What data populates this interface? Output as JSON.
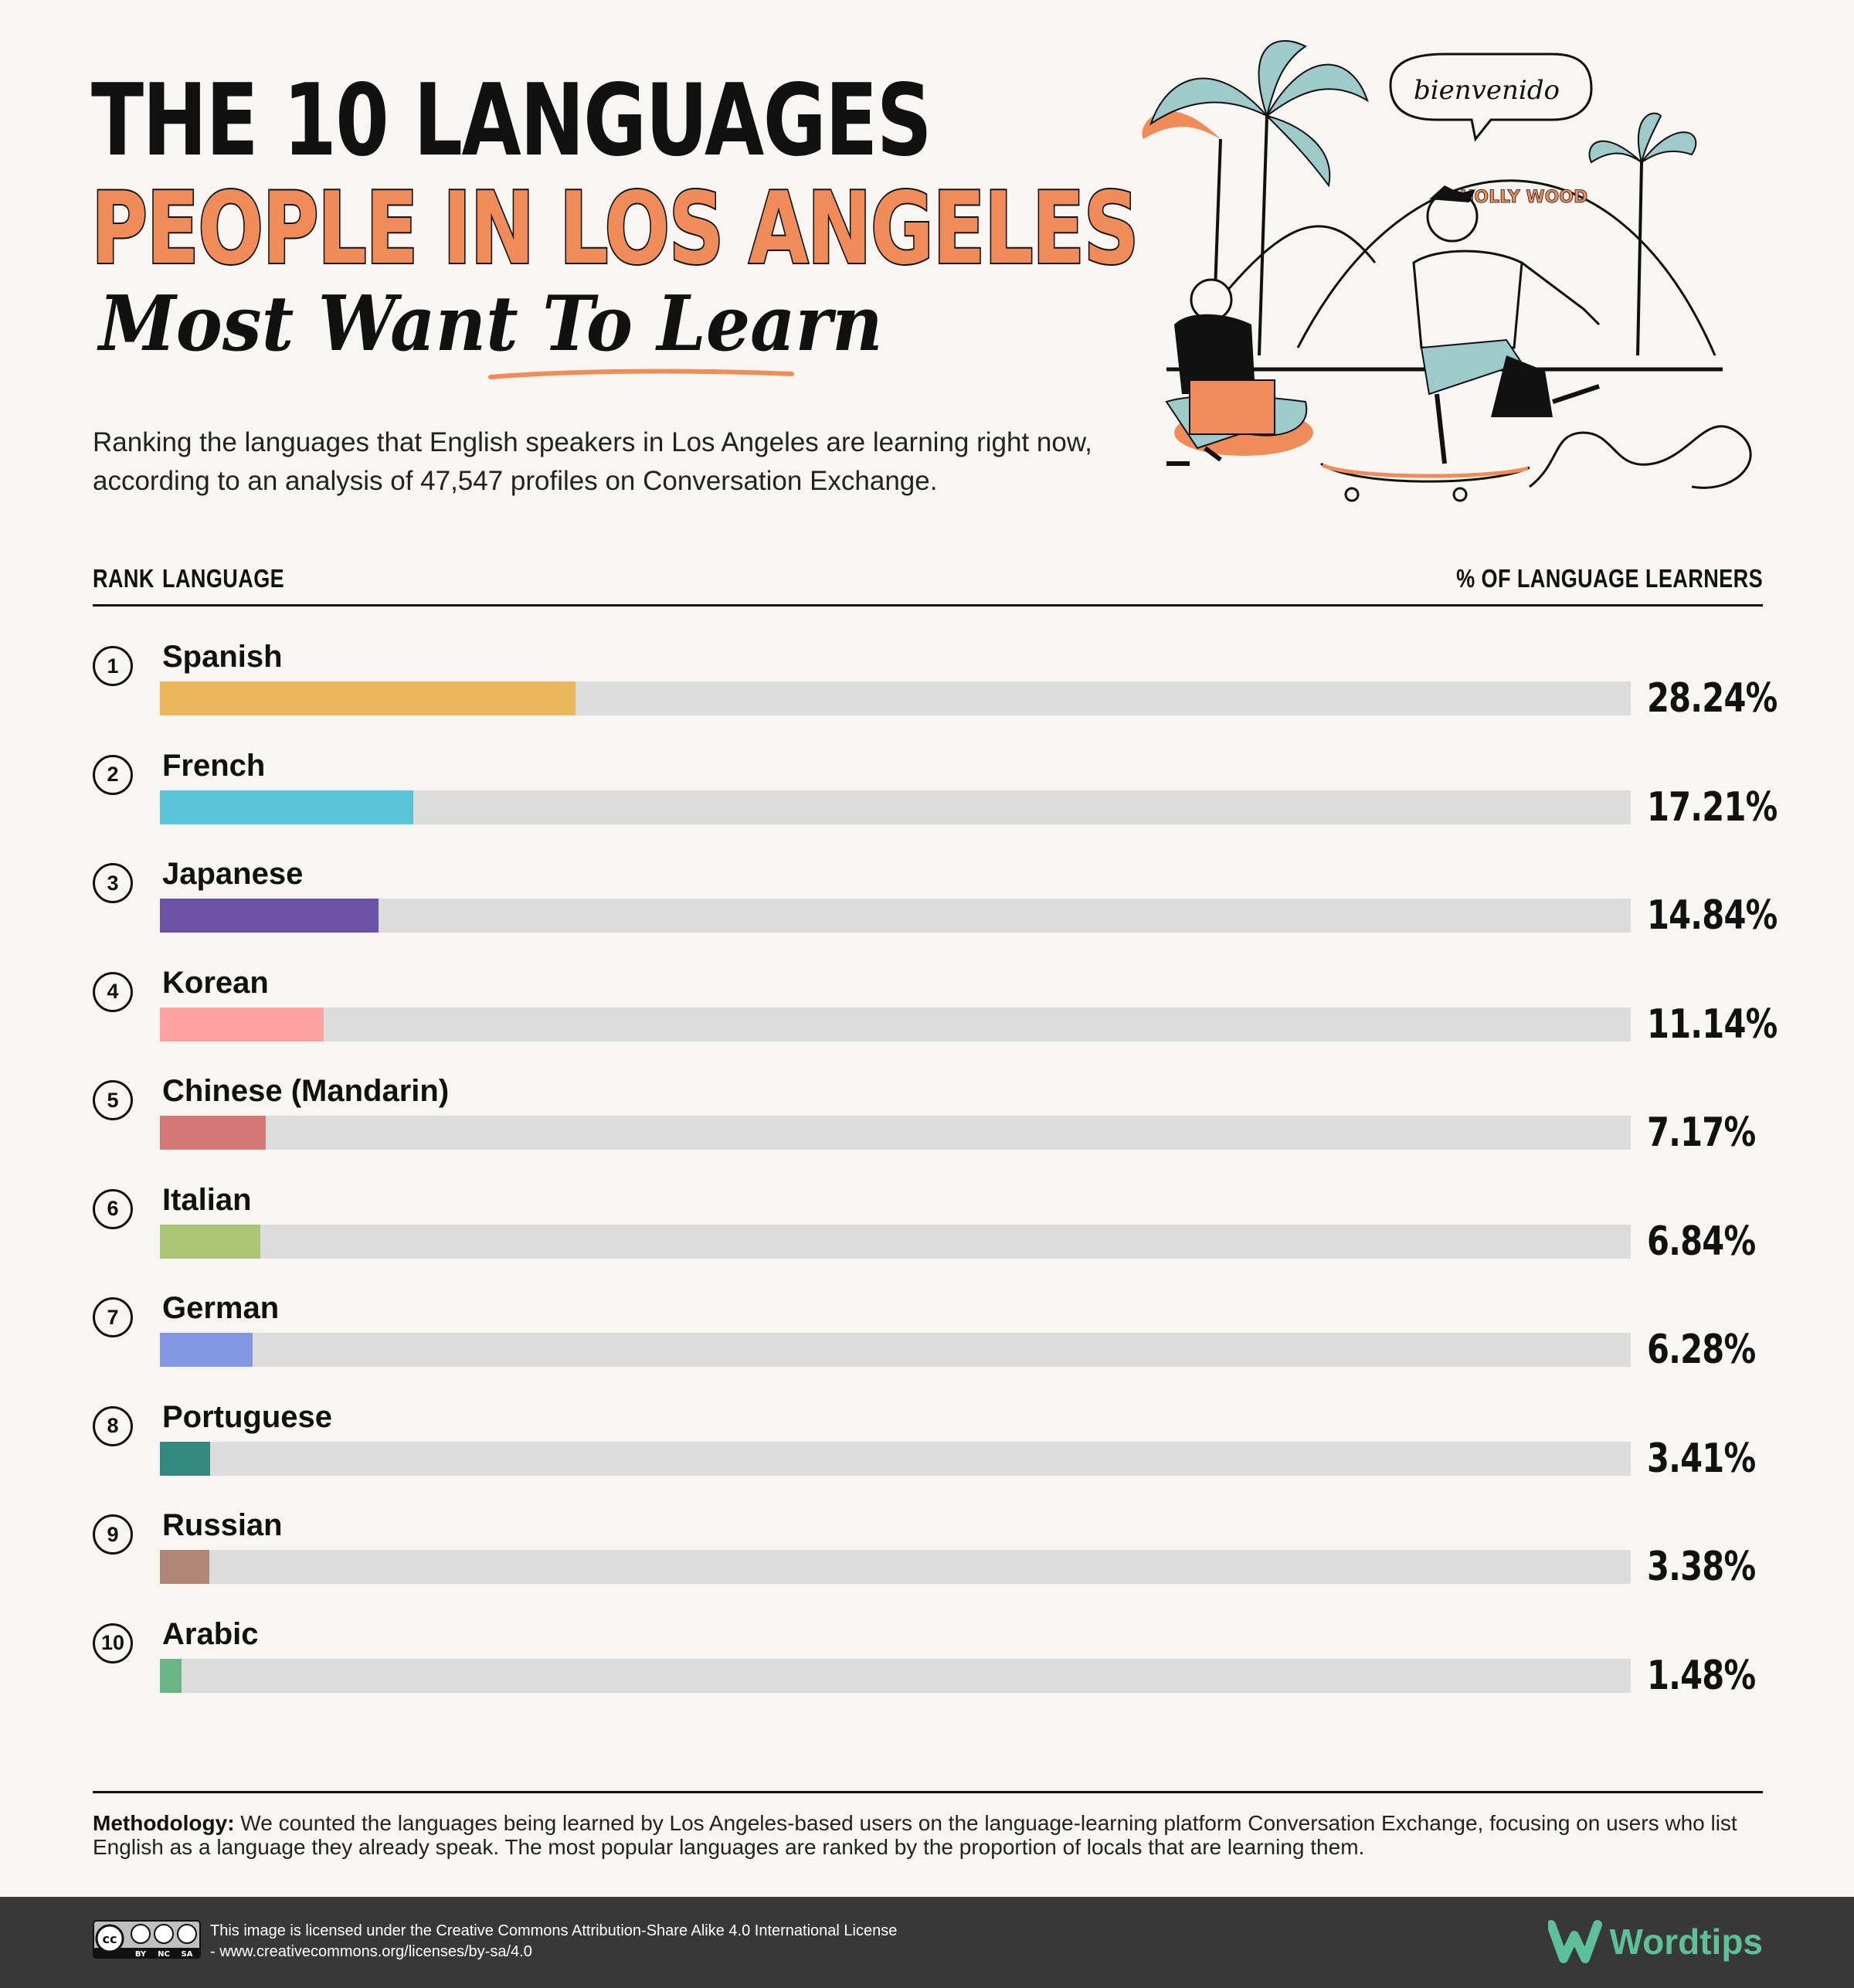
{
  "header": {
    "title_line1": "THE 10 LANGUAGES",
    "title_line2": "PEOPLE IN LOS ANGELES",
    "title_line3": "Most Want To Learn",
    "subtitle": "Ranking the languages that English speakers in Los Angeles are learning right now, according to an analysis of 47,547 profiles on Conversation Exchange."
  },
  "illustration": {
    "speech_bubble": "bienvenido",
    "sign_text": "HOLLY WOOD",
    "icons": [
      "palm-tree-icon",
      "person-with-laptop-icon",
      "skateboarder-icon",
      "hills-icon"
    ]
  },
  "table": {
    "col_rank": "RANK",
    "col_language": "LANGUAGE",
    "col_percent": "% OF LANGUAGE LEARNERS"
  },
  "chart_data": {
    "type": "bar",
    "orientation": "horizontal",
    "xlim": [
      0,
      100
    ],
    "categories": [
      "Spanish",
      "French",
      "Japanese",
      "Korean",
      "Chinese (Mandarin)",
      "Italian",
      "German",
      "Portuguese",
      "Russian",
      "Arabic"
    ],
    "ranks": [
      "1",
      "2",
      "3",
      "4",
      "5",
      "6",
      "7",
      "8",
      "9",
      "10"
    ],
    "values": [
      28.24,
      17.21,
      14.84,
      11.14,
      7.17,
      6.84,
      6.28,
      3.41,
      3.38,
      1.48
    ],
    "labels": [
      "28.24%",
      "17.21%",
      "14.84%",
      "11.14%",
      "7.17%",
      "6.84%",
      "6.28%",
      "3.41%",
      "3.38%",
      "1.48%"
    ],
    "colors": [
      "#ebb75d",
      "#5bc4d6",
      "#6b52a6",
      "#fea3a0",
      "#d47876",
      "#abc576",
      "#8296e4",
      "#338880",
      "#b08676",
      "#6ab586"
    ]
  },
  "methodology": {
    "label": "Methodology:",
    "text": " We counted the languages being learned by Los Angeles-based users on the language-learning platform Conversation Exchange, focusing on users who list English as a language they already speak. The most popular languages are ranked by the proportion of locals that are learning them."
  },
  "footer": {
    "cc_badge_labels": [
      "cc",
      "BY",
      "NC",
      "SA"
    ],
    "license_text": "This image is licensed under the Creative Commons Attribution-Share Alike 4.0 International License - www.creativecommons.org/licenses/by-sa/4.0",
    "brand": "Wordtips",
    "brand_color": "#5cc09a"
  }
}
